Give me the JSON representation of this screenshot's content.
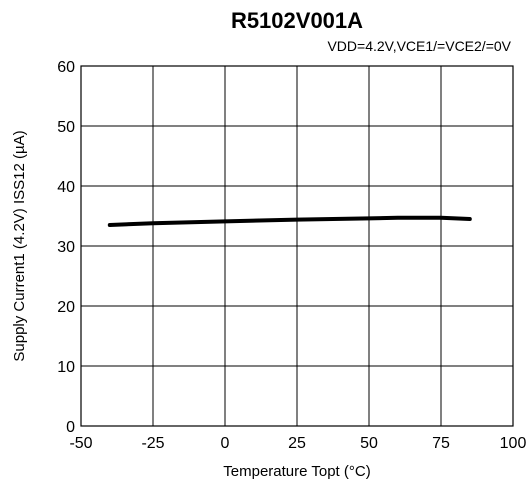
{
  "chart_data": {
    "type": "line",
    "title": "R5102V001A",
    "condition": "VDD=4.2V,VCE1/=VCE2/=0V",
    "xlabel": "Temperature Topt (°C)",
    "ylabel": "Supply Current1 (4.2V) ISS12 (µA)",
    "xlim": [
      -50,
      100
    ],
    "ylim": [
      0,
      60
    ],
    "xticks": [
      "-50",
      "-25",
      "0",
      "25",
      "50",
      "75",
      "100"
    ],
    "yticks": [
      "0",
      "10",
      "20",
      "30",
      "40",
      "50",
      "60"
    ],
    "xtick_values": [
      -50,
      -25,
      0,
      25,
      50,
      75,
      100
    ],
    "ytick_values": [
      0,
      10,
      20,
      30,
      40,
      50,
      60
    ],
    "grid": true,
    "series": [
      {
        "x": [
          -40,
          -25,
          0,
          25,
          50,
          60,
          75,
          85
        ],
        "y": [
          33.5,
          33.8,
          34.1,
          34.4,
          34.6,
          34.7,
          34.7,
          34.5
        ]
      }
    ]
  }
}
